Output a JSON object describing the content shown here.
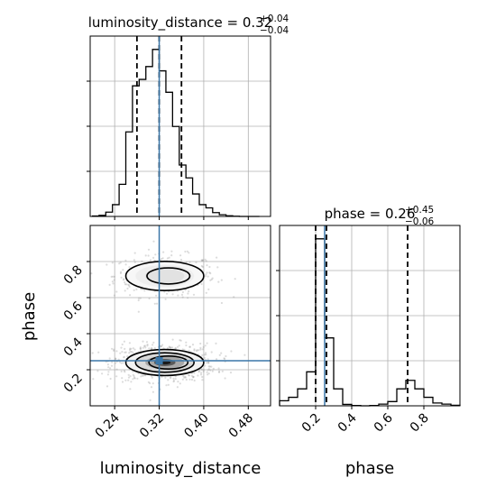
{
  "chart_data": {
    "type": "corner",
    "parameters": [
      "luminosity_distance",
      "phase"
    ],
    "truths": {
      "luminosity_distance": 0.32,
      "phase": 0.25
    },
    "truth_color": "#3a76a8",
    "panels": [
      {
        "id": "hist-luminosity_distance",
        "type": "histogram",
        "title_name": "luminosity_distance",
        "title_median": "0.32",
        "title_upper": "+0.04",
        "title_lower": "−0.04",
        "xlim": [
          0.196,
          0.52
        ],
        "bin_edges": [
          0.2,
          0.212,
          0.224,
          0.236,
          0.248,
          0.26,
          0.272,
          0.284,
          0.296,
          0.308,
          0.32,
          0.332,
          0.344,
          0.356,
          0.368,
          0.38,
          0.392,
          0.404,
          0.416,
          0.428,
          0.44,
          0.452,
          0.464,
          0.476,
          0.488,
          0.5
        ],
        "counts": [
          2,
          5,
          20,
          55,
          150,
          395,
          610,
          640,
          700,
          780,
          680,
          580,
          420,
          240,
          180,
          105,
          55,
          40,
          18,
          8,
          3,
          1,
          0,
          0,
          0
        ],
        "quantile_lines": [
          0.28,
          0.32,
          0.36
        ],
        "x_ticks": [
          0.24,
          0.32,
          0.4,
          0.48
        ]
      },
      {
        "id": "hist-phase",
        "type": "histogram",
        "title_name": "phase",
        "title_median": "0.26",
        "title_upper": "+0.45",
        "title_lower": "−0.06",
        "xlim": [
          0.0,
          1.0
        ],
        "bin_edges": [
          0.0,
          0.05,
          0.1,
          0.15,
          0.2,
          0.25,
          0.3,
          0.35,
          0.4,
          0.45,
          0.5,
          0.55,
          0.6,
          0.65,
          0.7,
          0.75,
          0.8,
          0.85,
          0.9,
          0.95,
          1.0
        ],
        "counts": [
          18,
          30,
          60,
          120,
          590,
          240,
          60,
          5,
          1,
          0,
          1,
          6,
          15,
          60,
          90,
          60,
          30,
          10,
          6,
          2
        ],
        "quantile_lines": [
          0.2,
          0.26,
          0.71
        ],
        "x_ticks": [
          0.2,
          0.4,
          0.6,
          0.8
        ]
      },
      {
        "id": "joint-luminosity_distance-phase",
        "type": "2d-density",
        "xlim": [
          0.196,
          0.52
        ],
        "ylim": [
          0.0,
          1.0
        ],
        "x_ticks": [
          0.24,
          0.32,
          0.4,
          0.48
        ],
        "y_ticks": [
          0.2,
          0.4,
          0.6,
          0.8
        ],
        "modes": [
          {
            "center": [
              0.33,
              0.72
            ],
            "sd": [
              0.035,
              0.045
            ],
            "weight": 0.35
          },
          {
            "center": [
              0.33,
              0.24
            ],
            "sd": [
              0.035,
              0.04
            ],
            "weight": 0.65
          }
        ]
      }
    ],
    "xlabels": [
      "luminosity_distance",
      "phase"
    ],
    "ylabels": [
      "",
      "phase"
    ],
    "tick_labels_x": {
      "luminosity_distance": [
        "0.24",
        "0.32",
        "0.40",
        "0.48"
      ],
      "phase": [
        "0.2",
        "0.4",
        "0.6",
        "0.8"
      ]
    },
    "tick_labels_y": {
      "phase": [
        "0.2",
        "0.4",
        "0.6",
        "0.8"
      ]
    }
  }
}
